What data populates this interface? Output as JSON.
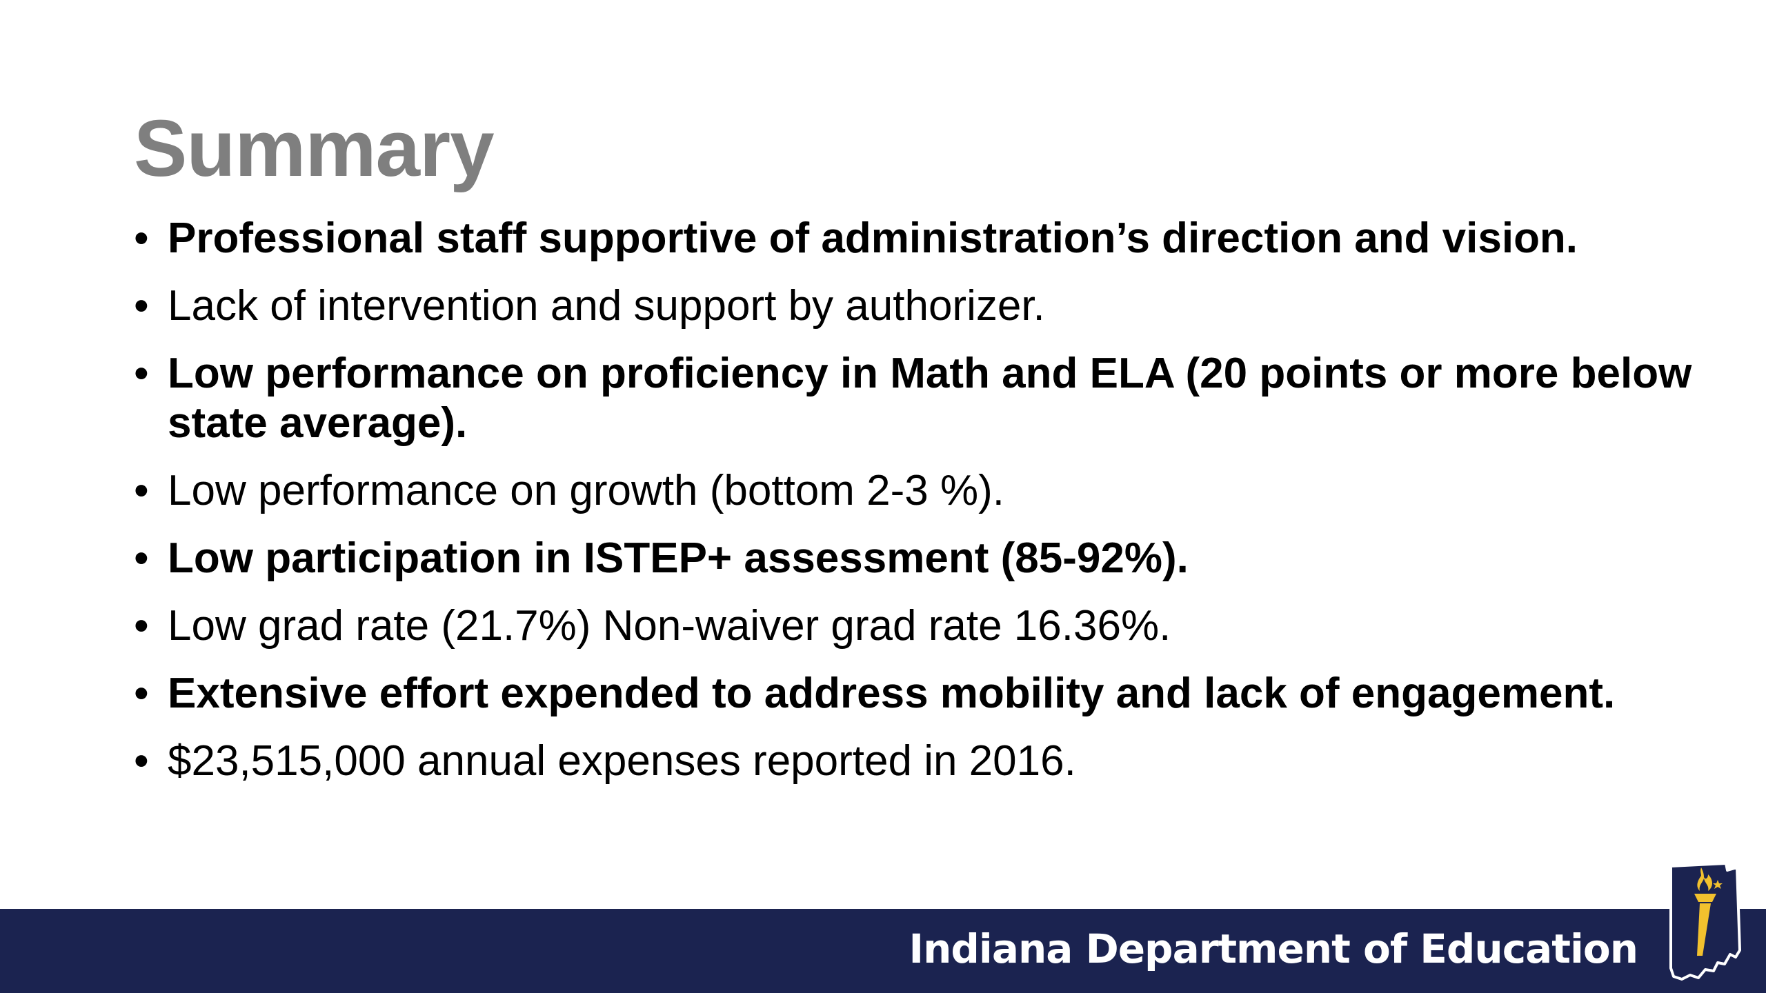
{
  "slide": {
    "title": "Summary",
    "bullet_symbol": "•",
    "bullets": [
      {
        "text": "Professional staff supportive of administration’s direction and vision.",
        "bold": true
      },
      {
        "text": "Lack of intervention and support by authorizer.",
        "bold": false
      },
      {
        "text": "Low performance on proficiency in Math and ELA (20 points or more below state average).",
        "bold": true
      },
      {
        "text": "Low performance on growth (bottom 2-3 %).",
        "bold": false
      },
      {
        "text": "Low participation in ISTEP+ assessment (85-92%).",
        "bold": true
      },
      {
        "text": "Low grad rate (21.7%) Non-waiver grad rate 16.36%.",
        "bold": false
      },
      {
        "text": "Extensive effort expended to address mobility and lack of engagement.",
        "bold": true
      },
      {
        "text": "$23,515,000 annual expenses reported in 2016.",
        "bold": false
      }
    ]
  },
  "footer": {
    "organization": "Indiana Department of Education",
    "logo_icon": "indiana-torch-logo-icon"
  },
  "colors": {
    "title": "#7f7f7f",
    "text": "#000000",
    "footer_bar": "#1b2350",
    "footer_text": "#ffffff",
    "logo_gold": "#f2c12e"
  }
}
